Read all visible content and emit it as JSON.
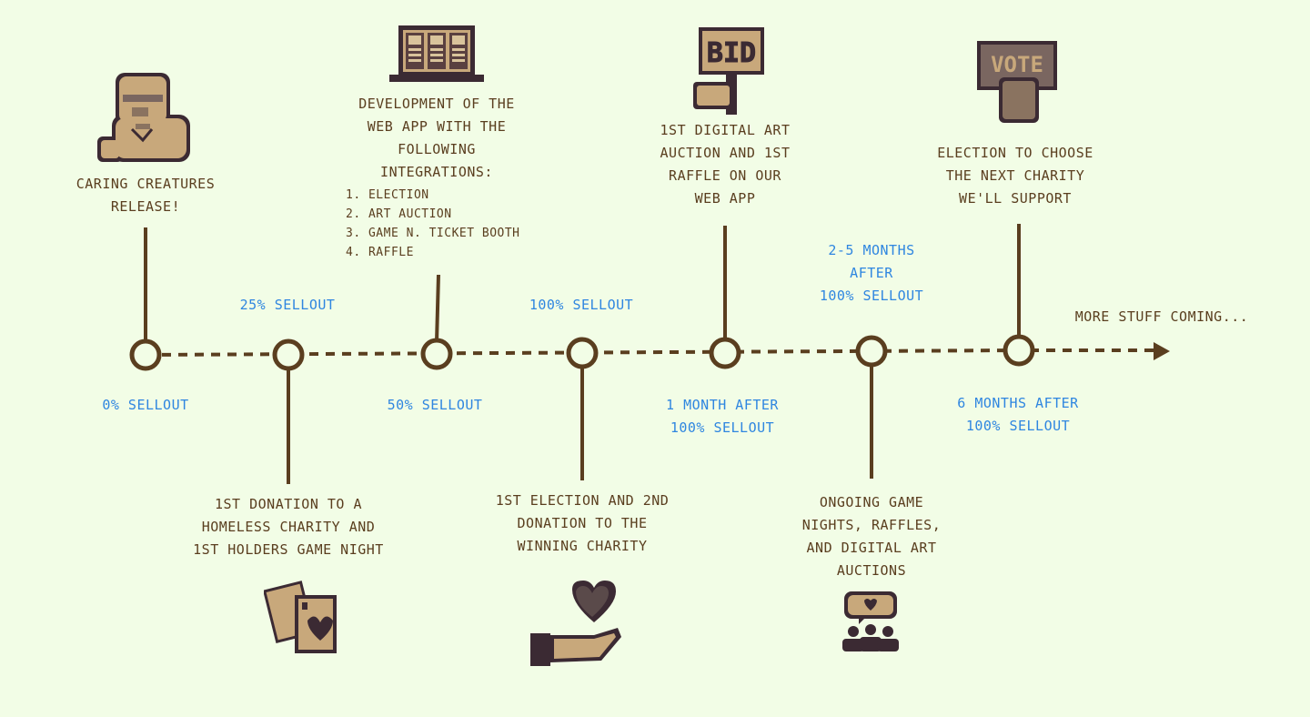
{
  "milestones": [
    {
      "label": "CARING CREATURES\nRELEASE!",
      "progress": "0% SELLOUT",
      "icon": "creature-icon"
    },
    {
      "label": "1ST DONATION TO A\nHOMELESS CHARITY AND\n1ST HOLDERS GAME NIGHT",
      "progress": "25% SELLOUT",
      "icon": "playing-cards-icon"
    },
    {
      "label": "DEVELOPMENT OF THE\nWEB APP WITH THE\nFOLLOWING\nINTEGRATIONS:",
      "progress": "50% SELLOUT",
      "icon": "laptop-icon",
      "integrations": [
        "1. ELECTION",
        "2. ART AUCTION",
        "3. GAME N. TICKET BOOTH",
        "4. RAFFLE"
      ]
    },
    {
      "label": "1ST ELECTION AND 2ND\nDONATION TO THE\nWINNING CHARITY",
      "progress": "100% SELLOUT",
      "icon": "heart-in-hand-icon"
    },
    {
      "label": "1ST DIGITAL ART\nAUCTION AND 1ST\nRAFFLE ON OUR\nWEB APP",
      "progress": "1 MONTH AFTER\n100% SELLOUT",
      "icon": "bid-sign-icon",
      "sign_text": "BID"
    },
    {
      "label": "ONGOING GAME\nNIGHTS, RAFFLES,\nAND DIGITAL ART\nAUCTIONS",
      "progress": "2-5 MONTHS\nAFTER\n100% SELLOUT",
      "icon": "community-icon"
    },
    {
      "label": "ELECTION TO CHOOSE\nTHE NEXT CHARITY\nWE'LL SUPPORT",
      "progress": "6 MONTHS AFTER\n100% SELLOUT",
      "icon": "vote-sign-icon",
      "sign_text": "VOTE"
    }
  ],
  "more": "MORE STUFF COMING...",
  "colors": {
    "line": "#5a3e1f",
    "progress": "#2f86e0",
    "background": "#f2fde6",
    "tan": "#c8a87b",
    "dark": "#3b2a33"
  }
}
